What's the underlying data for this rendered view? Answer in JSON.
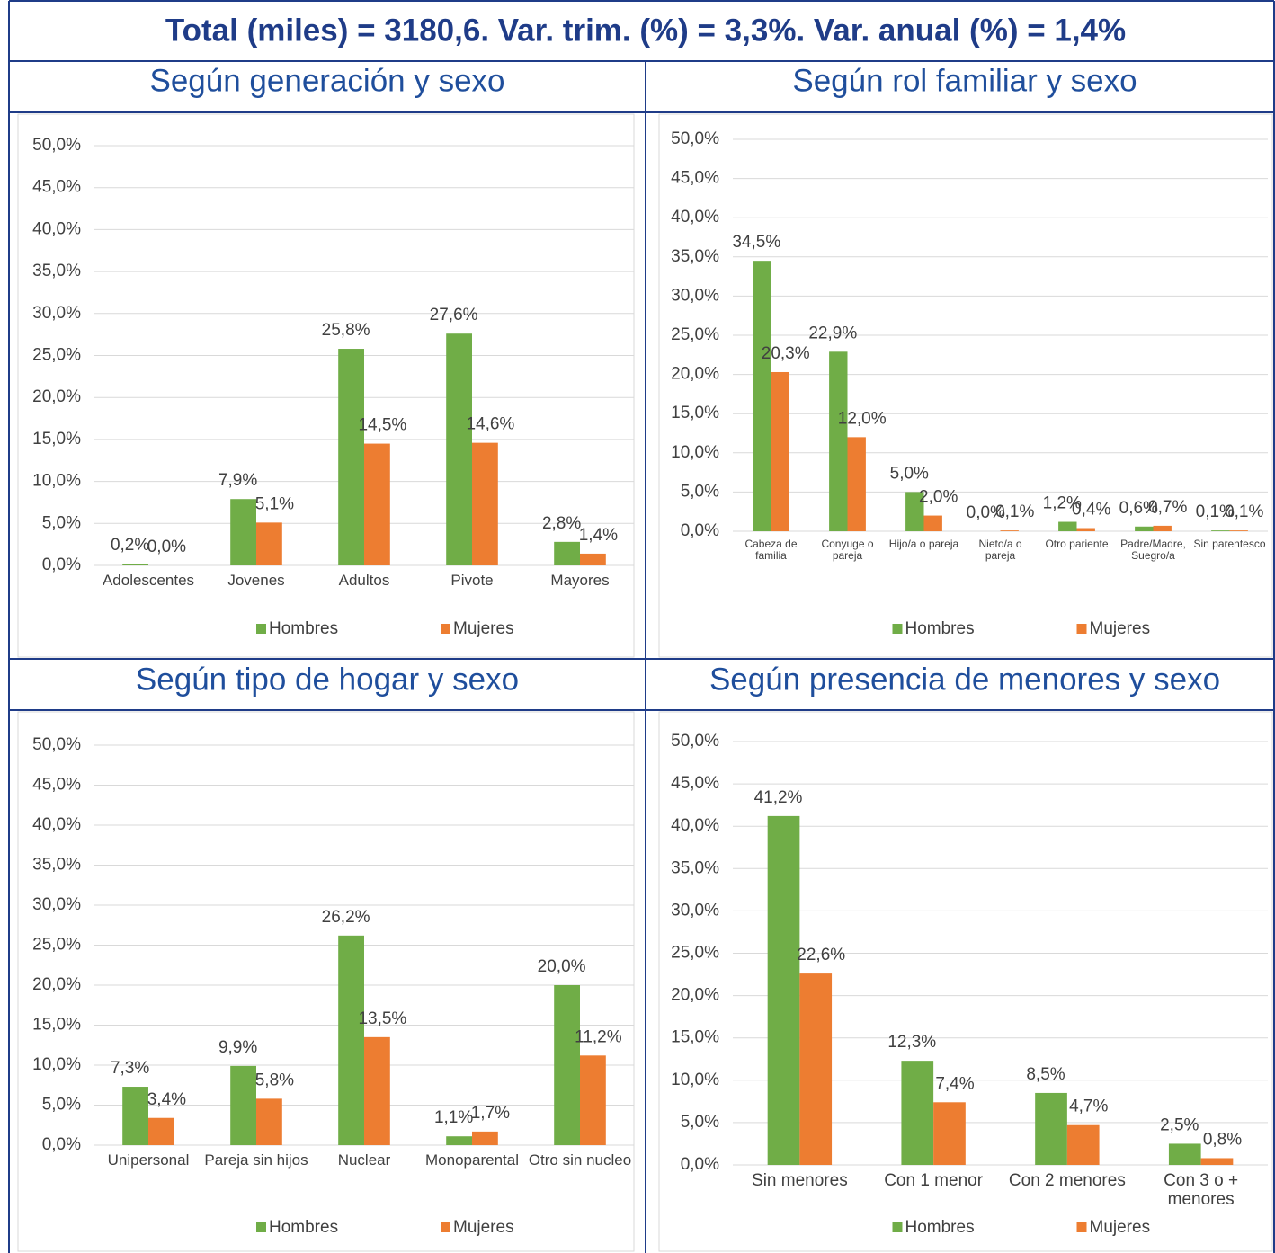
{
  "header": {
    "title": "Total (miles) = 3180,6.  Var. trim. (%) = 3,3%. Var. anual (%) = 1,4%"
  },
  "chart_data": [
    {
      "type": "bar",
      "title": "Según generación y sexo",
      "categories": [
        "Adolescentes",
        "Jovenes",
        "Adultos",
        "Pivote",
        "Mayores"
      ],
      "series": [
        {
          "name": "Hombres",
          "color": "#70ad47",
          "values": [
            0.2,
            7.9,
            25.8,
            27.6,
            2.8
          ],
          "value_labels": [
            "0,2%",
            "7,9%",
            "25,8%",
            "27,6%",
            "2,8%"
          ]
        },
        {
          "name": "Mujeres",
          "color": "#ed7d31",
          "values": [
            0.0,
            5.1,
            14.5,
            14.6,
            1.4
          ],
          "value_labels": [
            "0,0%",
            "5,1%",
            "14,5%",
            "14,6%",
            "1,4%"
          ]
        }
      ],
      "ylim": [
        0,
        50
      ],
      "yticks": [
        {
          "value": 0,
          "label": "0,0%"
        },
        {
          "value": 5,
          "label": "5,0%"
        },
        {
          "value": 10,
          "label": "10,0%"
        },
        {
          "value": 15,
          "label": "15,0%"
        },
        {
          "value": 20,
          "label": "20,0%"
        },
        {
          "value": 25,
          "label": "25,0%"
        },
        {
          "value": 30,
          "label": "30,0%"
        },
        {
          "value": 35,
          "label": "35,0%"
        },
        {
          "value": 40,
          "label": "40,0%"
        },
        {
          "value": 45,
          "label": "45,0%"
        },
        {
          "value": 50,
          "label": "50,0%"
        }
      ],
      "grid": true,
      "legend": "bottom"
    },
    {
      "type": "bar",
      "title": "Según rol familiar y sexo",
      "categories": [
        "Cabeza de familia",
        "Conyuge o pareja",
        "Hijo/a o pareja",
        "Nieto/a o pareja",
        "Otro pariente",
        "Padre/Madre, Suegro/a",
        "Sin parentesco"
      ],
      "series": [
        {
          "name": "Hombres",
          "color": "#70ad47",
          "values": [
            34.5,
            22.9,
            5.0,
            0.0,
            1.2,
            0.6,
            0.1
          ],
          "value_labels": [
            "34,5%",
            "22,9%",
            "5,0%",
            "0,0%",
            "1,2%",
            "0,6%",
            "0,1%"
          ]
        },
        {
          "name": "Mujeres",
          "color": "#ed7d31",
          "values": [
            20.3,
            12.0,
            2.0,
            0.1,
            0.4,
            0.7,
            0.1
          ],
          "value_labels": [
            "20,3%",
            "12,0%",
            "2,0%",
            "0,1%",
            "0,4%",
            "0,7%",
            "0,1%"
          ]
        }
      ],
      "ylim": [
        0,
        50
      ],
      "yticks": [
        {
          "value": 0,
          "label": "0,0%"
        },
        {
          "value": 5,
          "label": "5,0%"
        },
        {
          "value": 10,
          "label": "10,0%"
        },
        {
          "value": 15,
          "label": "15,0%"
        },
        {
          "value": 20,
          "label": "20,0%"
        },
        {
          "value": 25,
          "label": "25,0%"
        },
        {
          "value": 30,
          "label": "30,0%"
        },
        {
          "value": 35,
          "label": "35,0%"
        },
        {
          "value": 40,
          "label": "40,0%"
        },
        {
          "value": 45,
          "label": "45,0%"
        },
        {
          "value": 50,
          "label": "50,0%"
        }
      ],
      "grid": true,
      "legend": "bottom"
    },
    {
      "type": "bar",
      "title": "Según tipo de hogar y sexo",
      "categories": [
        "Unipersonal",
        "Pareja sin hijos",
        "Nuclear",
        "Monoparental",
        "Otro sin nucleo"
      ],
      "series": [
        {
          "name": "Hombres",
          "color": "#70ad47",
          "values": [
            7.3,
            9.9,
            26.2,
            1.1,
            20.0
          ],
          "value_labels": [
            "7,3%",
            "9,9%",
            "26,2%",
            "1,1%",
            "20,0%"
          ]
        },
        {
          "name": "Mujeres",
          "color": "#ed7d31",
          "values": [
            3.4,
            5.8,
            13.5,
            1.7,
            11.2
          ],
          "value_labels": [
            "3,4%",
            "5,8%",
            "13,5%",
            "1,7%",
            "11,2%"
          ]
        }
      ],
      "ylim": [
        0,
        50
      ],
      "yticks": [
        {
          "value": 0,
          "label": "0,0%"
        },
        {
          "value": 5,
          "label": "5,0%"
        },
        {
          "value": 10,
          "label": "10,0%"
        },
        {
          "value": 15,
          "label": "15,0%"
        },
        {
          "value": 20,
          "label": "20,0%"
        },
        {
          "value": 25,
          "label": "25,0%"
        },
        {
          "value": 30,
          "label": "30,0%"
        },
        {
          "value": 35,
          "label": "35,0%"
        },
        {
          "value": 40,
          "label": "40,0%"
        },
        {
          "value": 45,
          "label": "45,0%"
        },
        {
          "value": 50,
          "label": "50,0%"
        }
      ],
      "grid": true,
      "legend": "bottom"
    },
    {
      "type": "bar",
      "title": "Según presencia de menores y sexo",
      "categories": [
        "Sin menores",
        "Con 1 menor",
        "Con 2 menores",
        "Con 3 o + menores"
      ],
      "series": [
        {
          "name": "Hombres",
          "color": "#70ad47",
          "values": [
            41.2,
            12.3,
            8.5,
            2.5
          ],
          "value_labels": [
            "41,2%",
            "12,3%",
            "8,5%",
            "2,5%"
          ]
        },
        {
          "name": "Mujeres",
          "color": "#ed7d31",
          "values": [
            22.6,
            7.4,
            4.7,
            0.8
          ],
          "value_labels": [
            "22,6%",
            "7,4%",
            "4,7%",
            "0,8%"
          ]
        }
      ],
      "ylim": [
        0,
        50
      ],
      "yticks": [
        {
          "value": 0,
          "label": "0,0%"
        },
        {
          "value": 5,
          "label": "5,0%"
        },
        {
          "value": 10,
          "label": "10,0%"
        },
        {
          "value": 15,
          "label": "15,0%"
        },
        {
          "value": 20,
          "label": "20,0%"
        },
        {
          "value": 25,
          "label": "25,0%"
        },
        {
          "value": 30,
          "label": "30,0%"
        },
        {
          "value": 35,
          "label": "35,0%"
        },
        {
          "value": 40,
          "label": "40,0%"
        },
        {
          "value": 45,
          "label": "45,0%"
        },
        {
          "value": 50,
          "label": "50,0%"
        }
      ],
      "grid": true,
      "legend": "bottom"
    }
  ]
}
